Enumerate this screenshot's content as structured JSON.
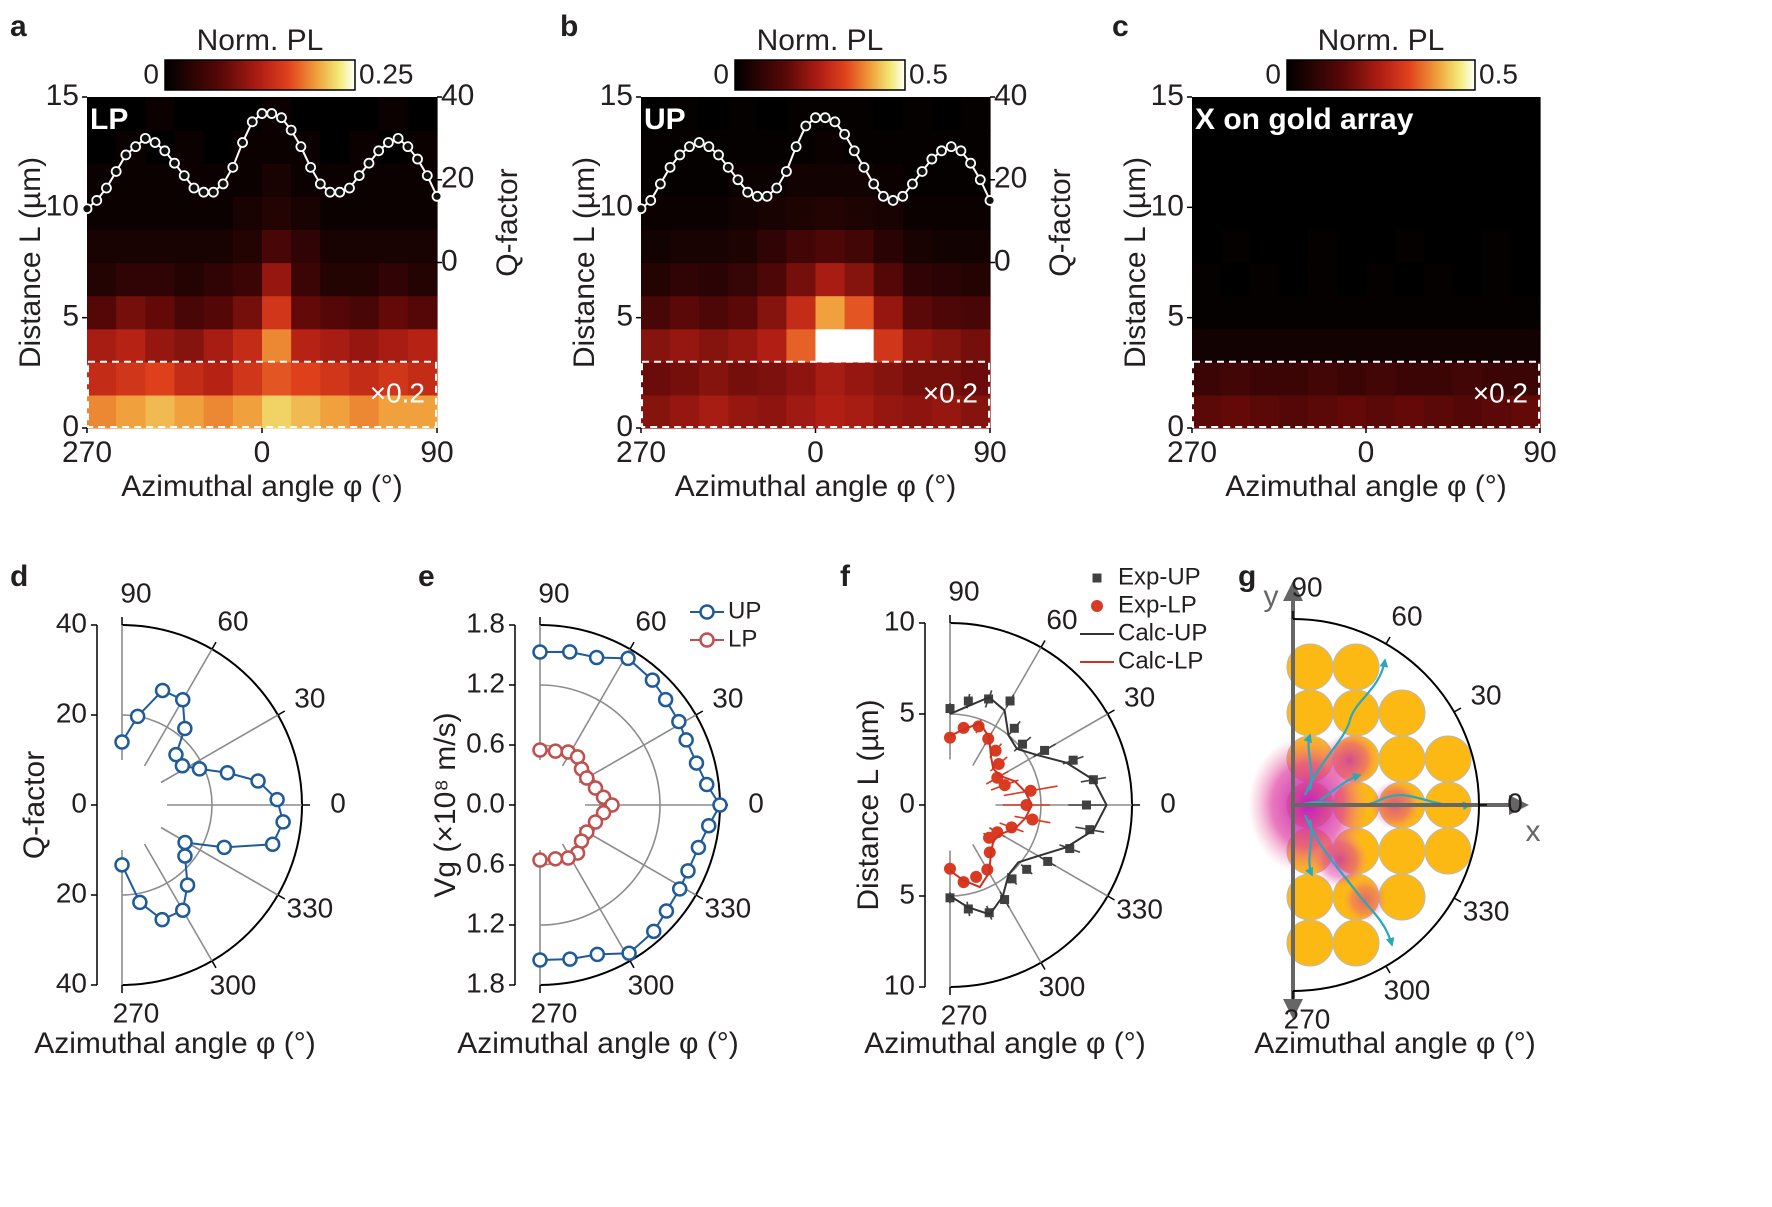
{
  "chart_data": [
    {
      "type": "heatmap",
      "panel": "a",
      "label": "LP",
      "colorbar_label": "Norm. PL",
      "clim": [
        0,
        0.25
      ],
      "cticks": [
        0,
        0.25
      ],
      "xlabel": "Azimuthal angle φ (°)",
      "ylabel": "Distance L (µm)",
      "y2label": "Q-factor",
      "xlim": [
        -90,
        90
      ],
      "xticks": [
        {
          "value": -90,
          "label": "270"
        },
        0,
        90
      ],
      "ylim": [
        0,
        15
      ],
      "yticks": [
        0,
        5,
        10,
        15
      ],
      "y2lim": [
        -40,
        40
      ],
      "y2ticks": [
        0,
        20,
        40
      ],
      "scaled_region": [
        0,
        3
      ],
      "scale_note": "×0.2",
      "z": [
        [
          0.19,
          0.2,
          0.21,
          0.2,
          0.19,
          0.2,
          0.22,
          0.21,
          0.2,
          0.19,
          0.2,
          0.2
        ],
        [
          0.14,
          0.15,
          0.16,
          0.14,
          0.13,
          0.15,
          0.17,
          0.16,
          0.15,
          0.14,
          0.15,
          0.14
        ],
        [
          0.12,
          0.13,
          0.11,
          0.1,
          0.12,
          0.14,
          0.19,
          0.13,
          0.12,
          0.11,
          0.12,
          0.13
        ],
        [
          0.07,
          0.09,
          0.08,
          0.06,
          0.07,
          0.09,
          0.15,
          0.08,
          0.07,
          0.06,
          0.08,
          0.07
        ],
        [
          0.03,
          0.04,
          0.04,
          0.03,
          0.04,
          0.05,
          0.11,
          0.05,
          0.03,
          0.03,
          0.04,
          0.03
        ],
        [
          0.02,
          0.02,
          0.02,
          0.02,
          0.02,
          0.03,
          0.06,
          0.04,
          0.02,
          0.02,
          0.02,
          0.02
        ],
        [
          0.01,
          0.01,
          0.01,
          0.01,
          0.01,
          0.02,
          0.03,
          0.02,
          0.01,
          0.01,
          0.01,
          0.01
        ],
        [
          0.01,
          0.01,
          0.01,
          0.01,
          0.01,
          0.01,
          0.02,
          0.01,
          0.01,
          0.01,
          0.01,
          0.01
        ],
        [
          0,
          0.01,
          0,
          0.01,
          0,
          0.01,
          0.01,
          0.01,
          0,
          0.01,
          0,
          0.01
        ],
        [
          0,
          0,
          0.01,
          0,
          0,
          0,
          0.01,
          0,
          0,
          0,
          0.01,
          0
        ]
      ],
      "series": [
        {
          "axis": "y2",
          "color": "#ffffff",
          "x": [
            -90,
            -85,
            -80,
            -75,
            -70,
            -65,
            -60,
            -55,
            -50,
            -45,
            -40,
            -35,
            -30,
            -25,
            -20,
            -15,
            -10,
            -5,
            0,
            5,
            10,
            15,
            20,
            25,
            30,
            35,
            40,
            45,
            50,
            55,
            60,
            65,
            70,
            75,
            80,
            85,
            90
          ],
          "values": [
            13,
            15,
            18,
            22,
            26,
            28,
            30,
            29,
            27,
            24,
            21,
            18,
            17,
            17,
            19,
            23,
            29,
            34,
            36,
            36,
            35,
            32,
            28,
            23,
            19,
            17,
            17,
            18,
            21,
            24,
            27,
            29,
            30,
            28,
            25,
            21,
            16
          ]
        }
      ]
    },
    {
      "type": "heatmap",
      "panel": "b",
      "label": "UP",
      "colorbar_label": "Norm. PL",
      "clim": [
        0,
        0.5
      ],
      "cticks": [
        0,
        0.5
      ],
      "xlabel": "Azimuthal angle φ (°)",
      "ylabel": "Distance L (µm)",
      "y2label": "Q-factor",
      "xlim": [
        -90,
        90
      ],
      "xticks": [
        {
          "value": -90,
          "label": "270"
        },
        0,
        90
      ],
      "ylim": [
        0,
        15
      ],
      "yticks": [
        0,
        5,
        10,
        15
      ],
      "y2lim": [
        -40,
        40
      ],
      "y2ticks": [
        0,
        20,
        40
      ],
      "scaled_region": [
        0,
        3
      ],
      "scale_note": "×0.2",
      "z": [
        [
          0.2,
          0.22,
          0.24,
          0.22,
          0.21,
          0.23,
          0.25,
          0.24,
          0.22,
          0.21,
          0.22,
          0.2
        ],
        [
          0.17,
          0.18,
          0.2,
          0.18,
          0.19,
          0.21,
          0.24,
          0.22,
          0.2,
          0.18,
          0.18,
          0.17
        ],
        [
          0.2,
          0.22,
          0.2,
          0.22,
          0.25,
          0.35,
          0.5,
          0.5,
          0.3,
          0.22,
          0.2,
          0.18
        ],
        [
          0.12,
          0.15,
          0.13,
          0.15,
          0.2,
          0.28,
          0.4,
          0.34,
          0.22,
          0.15,
          0.13,
          0.12
        ],
        [
          0.06,
          0.08,
          0.07,
          0.09,
          0.13,
          0.18,
          0.24,
          0.2,
          0.14,
          0.08,
          0.07,
          0.06
        ],
        [
          0.03,
          0.04,
          0.04,
          0.05,
          0.08,
          0.11,
          0.13,
          0.11,
          0.07,
          0.04,
          0.03,
          0.03
        ],
        [
          0.02,
          0.02,
          0.02,
          0.03,
          0.04,
          0.05,
          0.06,
          0.05,
          0.04,
          0.02,
          0.02,
          0.02
        ],
        [
          0.01,
          0.01,
          0.01,
          0.02,
          0.02,
          0.03,
          0.03,
          0.03,
          0.02,
          0.01,
          0.01,
          0.01
        ],
        [
          0.01,
          0.01,
          0.01,
          0.01,
          0.01,
          0.01,
          0.02,
          0.01,
          0.01,
          0.01,
          0.01,
          0.01
        ],
        [
          0,
          0.01,
          0,
          0.01,
          0,
          0.01,
          0.01,
          0.01,
          0,
          0.01,
          0,
          0.01
        ]
      ],
      "series": [
        {
          "axis": "y2",
          "color": "#ffffff",
          "x": [
            -90,
            -85,
            -80,
            -75,
            -70,
            -65,
            -60,
            -55,
            -50,
            -45,
            -40,
            -35,
            -30,
            -25,
            -20,
            -15,
            -10,
            -5,
            0,
            5,
            10,
            15,
            20,
            25,
            30,
            35,
            40,
            45,
            50,
            55,
            60,
            65,
            70,
            75,
            80,
            85,
            90
          ],
          "values": [
            13,
            15,
            19,
            23,
            26,
            28,
            29,
            28,
            26,
            23,
            20,
            17,
            16,
            16,
            18,
            22,
            28,
            33,
            35,
            35,
            34,
            31,
            27,
            23,
            19,
            16,
            15,
            16,
            19,
            22,
            25,
            27,
            28,
            27,
            24,
            20,
            15
          ]
        }
      ]
    },
    {
      "type": "heatmap",
      "panel": "c",
      "label": "X on gold array",
      "colorbar_label": "Norm. PL",
      "clim": [
        0,
        0.5
      ],
      "cticks": [
        0,
        0.5
      ],
      "xlabel": "Azimuthal angle φ (°)",
      "ylabel": "Distance L (µm)",
      "xlim": [
        -90,
        90
      ],
      "xticks": [
        {
          "value": -90,
          "label": "270"
        },
        0,
        90
      ],
      "ylim": [
        0,
        15
      ],
      "yticks": [
        0,
        5,
        10,
        15
      ],
      "scaled_region": [
        0,
        3
      ],
      "scale_note": "×0.2",
      "z": [
        [
          0.15,
          0.16,
          0.15,
          0.14,
          0.15,
          0.16,
          0.15,
          0.16,
          0.15,
          0.14,
          0.15,
          0.16
        ],
        [
          0.1,
          0.11,
          0.1,
          0.1,
          0.11,
          0.1,
          0.11,
          0.1,
          0.1,
          0.11,
          0.1,
          0.1
        ],
        [
          0.03,
          0.03,
          0.03,
          0.03,
          0.03,
          0.03,
          0.03,
          0.03,
          0.03,
          0.03,
          0.03,
          0.03
        ],
        [
          0.01,
          0.01,
          0.01,
          0.01,
          0.01,
          0.01,
          0.01,
          0.01,
          0.01,
          0.01,
          0.01,
          0.01
        ],
        [
          0.01,
          0,
          0.01,
          0,
          0.01,
          0,
          0.01,
          0,
          0.01,
          0,
          0.01,
          0
        ],
        [
          0,
          0.01,
          0,
          0,
          0.01,
          0,
          0,
          0.01,
          0,
          0,
          0.01,
          0
        ],
        [
          0,
          0,
          0,
          0,
          0,
          0,
          0,
          0,
          0,
          0,
          0,
          0
        ],
        [
          0,
          0,
          0,
          0,
          0,
          0,
          0,
          0,
          0,
          0,
          0,
          0
        ],
        [
          0,
          0,
          0,
          0,
          0,
          0,
          0,
          0,
          0,
          0,
          0,
          0
        ],
        [
          0,
          0,
          0,
          0,
          0,
          0,
          0,
          0,
          0,
          0,
          0,
          0
        ]
      ]
    },
    {
      "type": "polar",
      "panel": "d",
      "xlabel": "Azimuthal angle φ (°)",
      "ylabel": "Q-factor",
      "rlim": [
        0,
        40
      ],
      "rticks": [
        0,
        20,
        40
      ],
      "thetaticks": [
        90,
        60,
        30,
        0,
        {
          "value": -30,
          "label": "330"
        },
        {
          "value": -60,
          "label": "300"
        },
        {
          "value": -90,
          "label": "270"
        }
      ],
      "series": [
        {
          "color": "#1f5a9a",
          "marker": "open-circle",
          "line": true,
          "theta": [
            90,
            80,
            70.5,
            60,
            50.6,
            43,
            33,
            25,
            17,
            10,
            2,
            -6,
            -14.6,
            -22.5,
            -30.7,
            -39,
            -50.7,
            -60,
            -70.7,
            -79.6,
            -90
          ],
          "values": [
            14,
            20,
            27,
            27,
            22,
            16.4,
            16,
            19,
            24.5,
            30.7,
            34.5,
            36,
            34.6,
            24.6,
            16.3,
            18,
            23,
            27,
            27,
            22,
            13.3
          ]
        }
      ]
    },
    {
      "type": "polar",
      "panel": "e",
      "xlabel": "Azimuthal angle φ (°)",
      "ylabel": "Vg (×10⁸ m/s)",
      "rlim": [
        0,
        1.8
      ],
      "rticks": [
        {
          "value": 0,
          "label": "0.0"
        },
        0.6,
        1.2,
        1.8
      ],
      "thetaticks": [
        90,
        60,
        30,
        0,
        {
          "value": -30,
          "label": "330"
        },
        {
          "value": -60,
          "label": "300"
        },
        {
          "value": -90,
          "label": "270"
        }
      ],
      "series": [
        {
          "name": "UP",
          "color": "#1f5a9a",
          "marker": "open-circle",
          "line": true,
          "theta": [
            90,
            79,
            69,
            59,
            48,
            40,
            31,
            24,
            15,
            7,
            0,
            -7,
            -15,
            -24,
            -31,
            -40,
            -48,
            -59,
            -69,
            -79,
            -90
          ],
          "values": [
            1.53,
            1.56,
            1.58,
            1.71,
            1.68,
            1.64,
            1.62,
            1.6,
            1.62,
            1.68,
            1.8,
            1.7,
            1.64,
            1.62,
            1.63,
            1.65,
            1.7,
            1.73,
            1.6,
            1.57,
            1.55
          ]
        },
        {
          "name": "LP",
          "color": "#c0504d",
          "marker": "open-circle",
          "line": true,
          "theta": [
            90,
            74,
            62,
            52,
            41,
            30,
            17,
            7,
            0,
            -7,
            -17,
            -30,
            -41,
            -52,
            -62,
            -74,
            -90
          ],
          "values": [
            0.55,
            0.56,
            0.6,
            0.61,
            0.55,
            0.54,
            0.58,
            0.64,
            0.72,
            0.64,
            0.58,
            0.54,
            0.55,
            0.61,
            0.6,
            0.56,
            0.55
          ]
        }
      ]
    },
    {
      "type": "polar",
      "panel": "f",
      "xlabel": "Azimuthal angle φ (°)",
      "ylabel": "Distance L (µm)",
      "rlim": [
        0,
        10
      ],
      "rticks": [
        0,
        5,
        10
      ],
      "thetaticks": [
        90,
        60,
        30,
        0,
        {
          "value": -30,
          "label": "330"
        },
        {
          "value": -60,
          "label": "300"
        },
        {
          "value": -90,
          "label": "270"
        }
      ],
      "series": [
        {
          "name": "Exp-UP",
          "color": "#404040",
          "marker": "square",
          "line": false,
          "theta": [
            90,
            80,
            70,
            60,
            50,
            40,
            30,
            20,
            10,
            0,
            -10,
            -20,
            -30,
            -40,
            -50,
            -60,
            -70,
            -80,
            -90
          ],
          "values": [
            5.3,
            5.8,
            6.2,
            6.6,
            5.5,
            5.2,
            6,
            7.2,
            8,
            7.5,
            7.8,
            7,
            6.2,
            5.5,
            5.3,
            6,
            6.3,
            5.8,
            5.1
          ],
          "errors": [
            0.3,
            0.4,
            0.5,
            0.4,
            0.5,
            0.6,
            0.7,
            0.6,
            0.7,
            1,
            0.8,
            0.6,
            0.5,
            0.4,
            0.4,
            0.5,
            0.4,
            0.4,
            0.3
          ]
        },
        {
          "name": "Exp-LP",
          "color": "#d83a22",
          "marker": "dot",
          "line": false,
          "theta": [
            90,
            80,
            70,
            60,
            50,
            40,
            30,
            20,
            10,
            0,
            -10,
            -20,
            -30,
            -40,
            -50,
            -60,
            -70,
            -80,
            -90
          ],
          "values": [
            3.7,
            4.3,
            4.6,
            4.2,
            3.9,
            3.5,
            3,
            3.2,
            4.5,
            4.2,
            4.6,
            3.6,
            3,
            2.8,
            3.4,
            4.1,
            4.2,
            4.3,
            3.5
          ],
          "errors": [
            0.3,
            0.3,
            0.4,
            0.4,
            0.5,
            0.6,
            0.7,
            0.8,
            1.5,
            1.3,
            1,
            0.7,
            0.5,
            0.4,
            0.3,
            0.3,
            0.3,
            0.3,
            0.3
          ]
        },
        {
          "name": "Calc-UP",
          "color": "#333333",
          "marker": "none",
          "line": true,
          "theta": [
            90,
            80,
            70,
            60,
            50,
            40,
            30,
            20,
            10,
            0,
            -10,
            -20,
            -30,
            -40,
            -50,
            -60,
            -70,
            -80,
            -90
          ],
          "values": [
            5,
            5.5,
            6.3,
            6,
            5,
            4.8,
            5.5,
            6.8,
            8,
            8.6,
            8,
            6.8,
            5.6,
            4.9,
            5,
            5.8,
            6.4,
            5.7,
            5
          ]
        },
        {
          "name": "Calc-LP",
          "color": "#d03020",
          "marker": "none",
          "line": true,
          "theta": [
            90,
            80,
            70,
            60,
            50,
            40,
            30,
            20,
            10,
            0,
            -10,
            -20,
            -30,
            -40,
            -50,
            -60,
            -70,
            -80,
            -90
          ],
          "values": [
            3.8,
            4.2,
            4.8,
            4.3,
            3.5,
            3.1,
            3.2,
            3.8,
            4.2,
            4.5,
            4.2,
            3.8,
            3.2,
            3.1,
            3.5,
            4.3,
            4.8,
            4.2,
            3.6
          ]
        }
      ]
    },
    {
      "type": "polar",
      "panel": "g",
      "xlabel": "Azimuthal angle φ (°)",
      "x_arrow_label": "x",
      "y_arrow_label": "y",
      "thetaticks": [
        90,
        60,
        30,
        0,
        {
          "value": -30,
          "label": "330"
        },
        {
          "value": -60,
          "label": "300"
        },
        {
          "value": -90,
          "label": "270"
        }
      ]
    }
  ]
}
